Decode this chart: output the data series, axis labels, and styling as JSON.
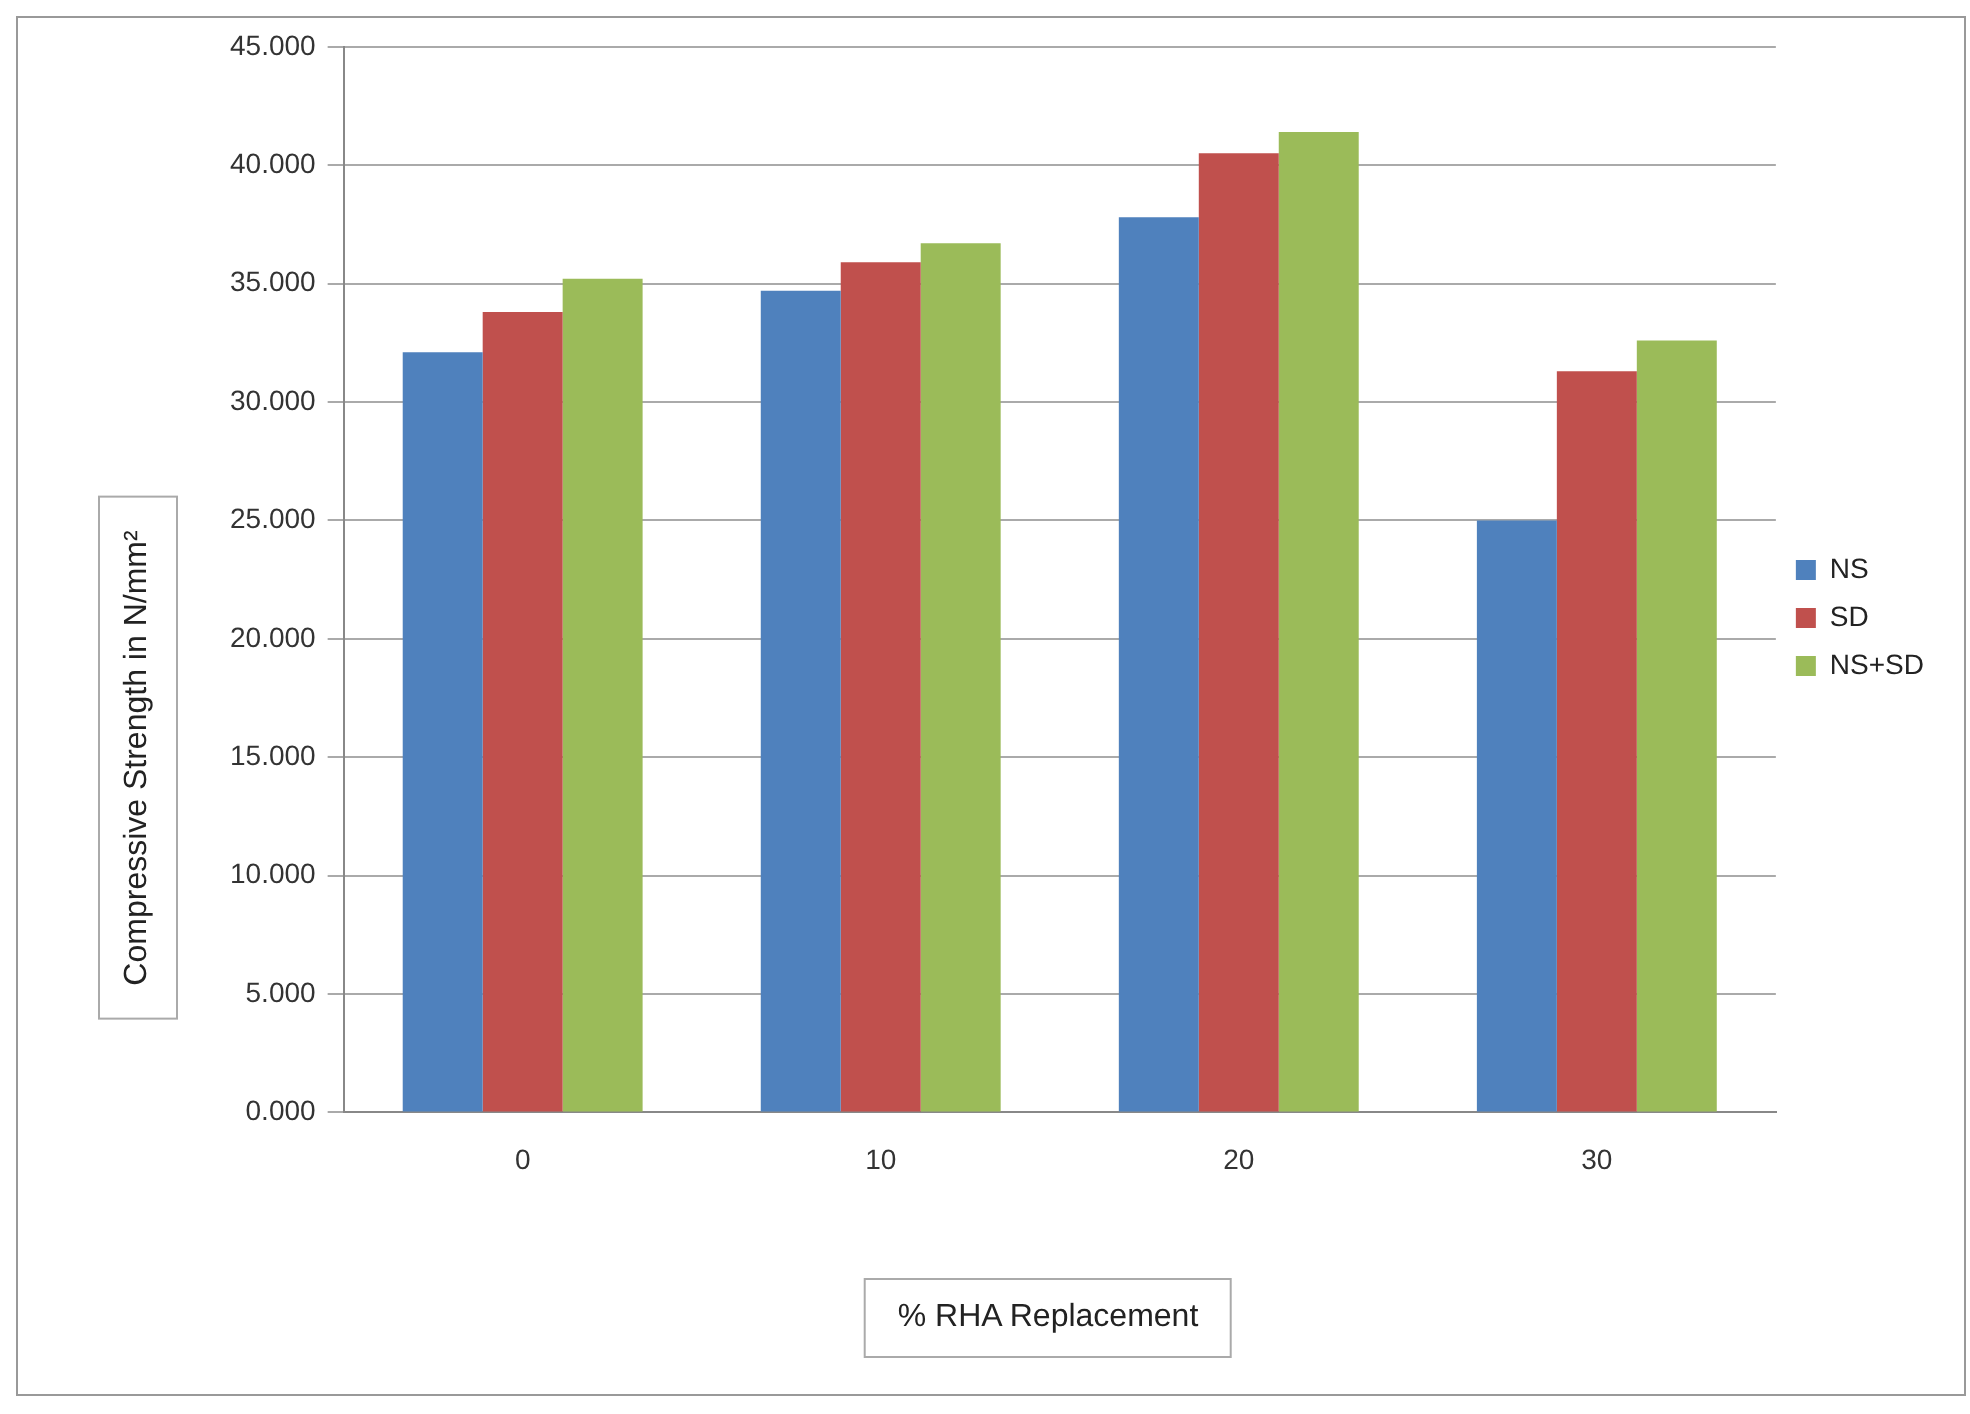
{
  "chart_data": {
    "type": "bar",
    "xlabel": "% RHA Replacement",
    "ylabel": "Compressive Strength in N/mm²",
    "categories": [
      "0",
      "10",
      "20",
      "30"
    ],
    "series": [
      {
        "name": "NS",
        "color": "#4f81bd",
        "values": [
          32.1,
          34.7,
          37.8,
          25.0
        ]
      },
      {
        "name": "SD",
        "color": "#c0504d",
        "values": [
          33.8,
          35.9,
          40.5,
          31.3
        ]
      },
      {
        "name": "NS+SD",
        "color": "#9bbb59",
        "values": [
          35.2,
          36.7,
          41.4,
          32.6
        ]
      }
    ],
    "ylim": [
      0,
      45
    ],
    "yticks": [
      {
        "value": 0,
        "label": "0.000"
      },
      {
        "value": 5,
        "label": "5.000"
      },
      {
        "value": 10,
        "label": "10.000"
      },
      {
        "value": 15,
        "label": "15.000"
      },
      {
        "value": 20,
        "label": "20.000"
      },
      {
        "value": 25,
        "label": "25.000"
      },
      {
        "value": 30,
        "label": "30.000"
      },
      {
        "value": 35,
        "label": "35.000"
      },
      {
        "value": 40,
        "label": "40.000"
      },
      {
        "value": 45,
        "label": "45.000"
      }
    ],
    "grid": "y",
    "legend": "right"
  }
}
